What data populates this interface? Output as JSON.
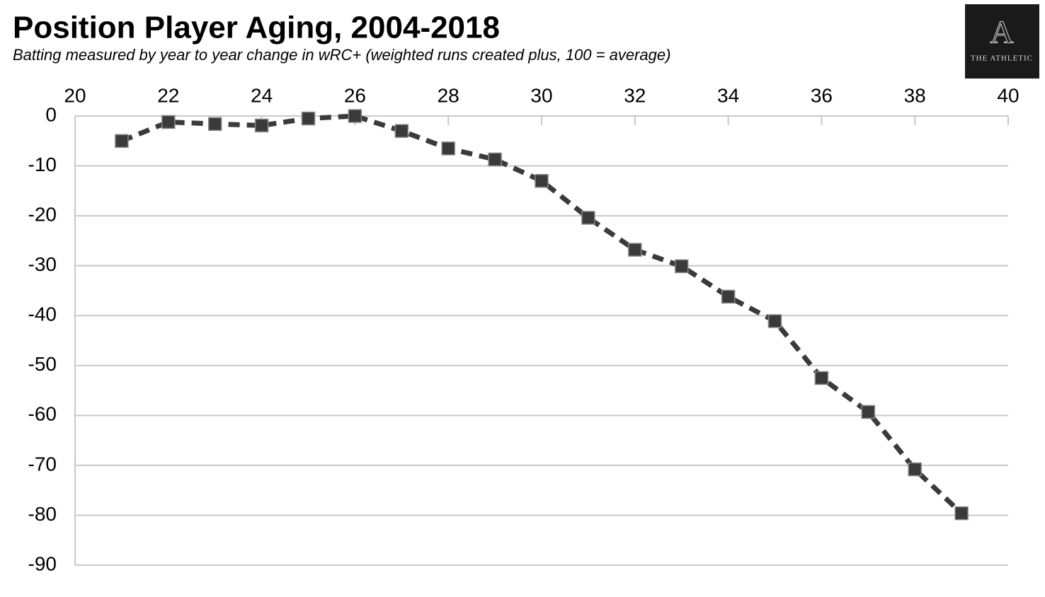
{
  "chart_data": {
    "type": "line",
    "title": "Position Player Aging, 2004-2018",
    "subtitle": "Batting measured by year to year change in wRC+ (weighted runs created plus, 100 = average)",
    "logo_mark": "A",
    "logo_text": "THE ATHLETIC",
    "x": [
      21,
      22,
      23,
      24,
      25,
      26,
      27,
      28,
      29,
      30,
      31,
      32,
      33,
      34,
      35,
      36,
      37,
      38,
      39
    ],
    "series": [
      {
        "color": "#3a3a3a",
        "values": [
          -5,
          -1.2,
          -1.6,
          -1.9,
          -0.5,
          0,
          -3,
          -6.5,
          -8.7,
          -13,
          -20.4,
          -26.8,
          -30.1,
          -36.2,
          -41.1,
          -52.5,
          -59.3,
          -70.8,
          -79.6
        ]
      }
    ],
    "xlim": [
      20,
      40
    ],
    "xticks": [
      20,
      22,
      24,
      26,
      28,
      30,
      32,
      34,
      36,
      38,
      40
    ],
    "ylim": [
      -90,
      0
    ],
    "yticks": [
      0,
      -10,
      -20,
      -30,
      -40,
      -50,
      -60,
      -70,
      -80,
      -90
    ],
    "grid": true
  }
}
